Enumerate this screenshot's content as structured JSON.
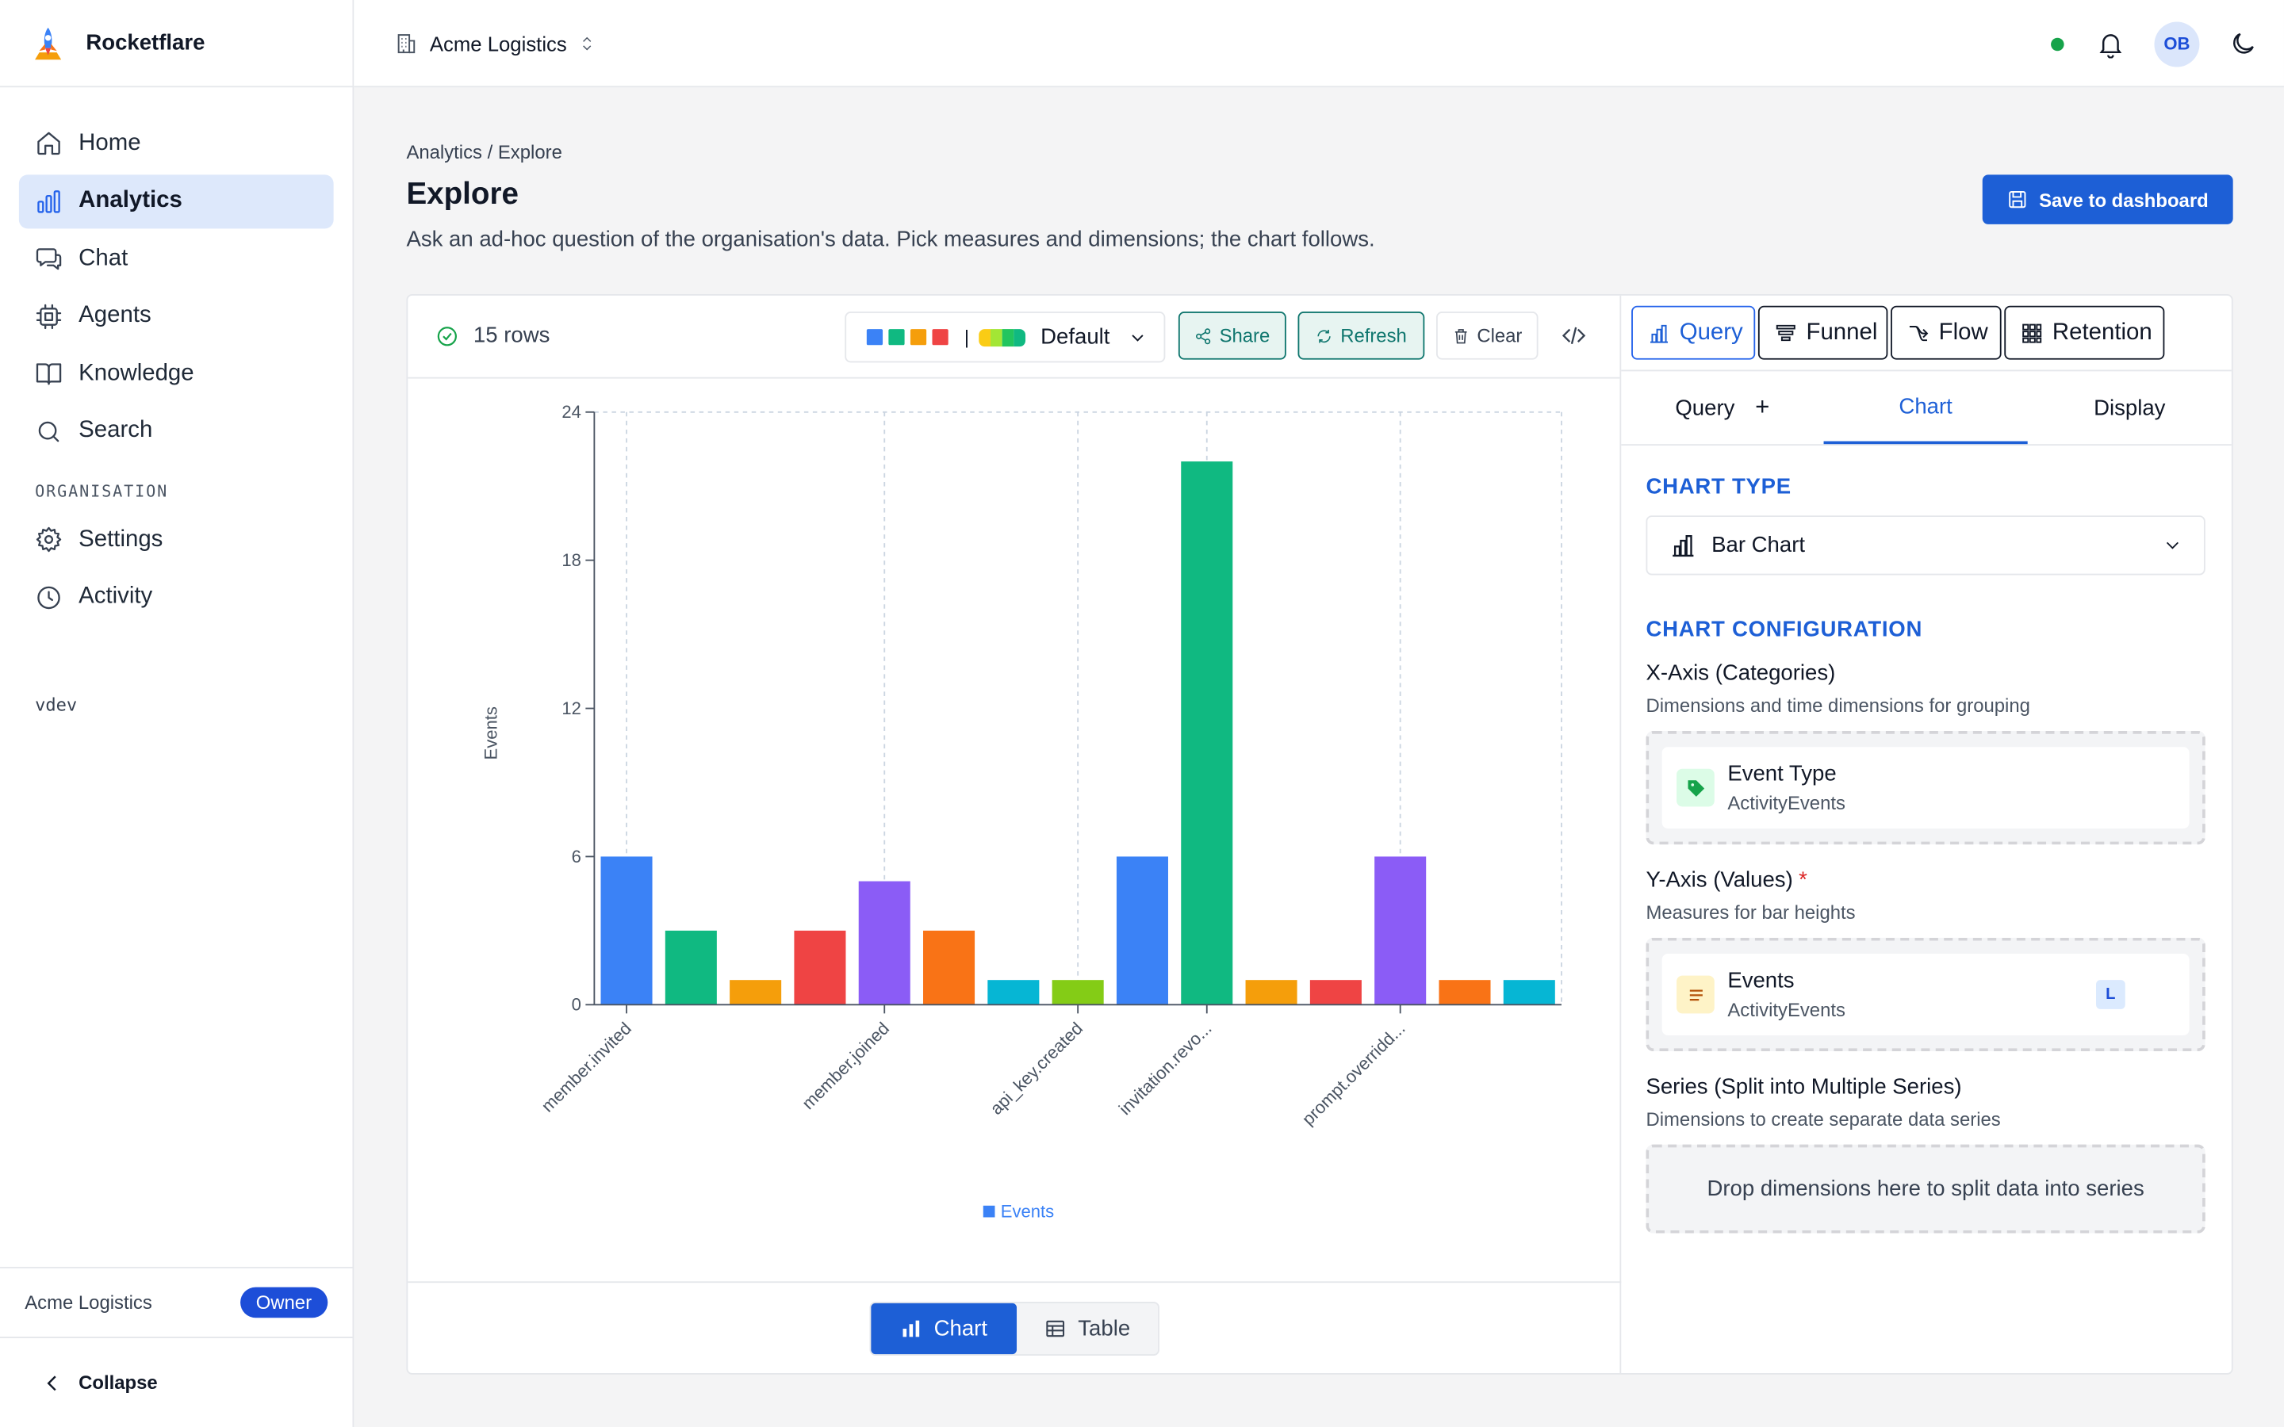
{
  "app": {
    "name": "Rocketflare",
    "colors": {
      "accent": "#1d5fd6",
      "teal": "#0f766e",
      "success": "#16a34a"
    }
  },
  "sidebar": {
    "items": [
      {
        "label": "Home",
        "icon": "home-icon"
      },
      {
        "label": "Analytics",
        "icon": "bar-chart-icon",
        "active": true
      },
      {
        "label": "Chat",
        "icon": "chat-icon"
      },
      {
        "label": "Agents",
        "icon": "chip-icon"
      },
      {
        "label": "Knowledge",
        "icon": "book-icon"
      },
      {
        "label": "Search",
        "icon": "search-icon"
      }
    ],
    "section_label": "ORGANISATION",
    "org_items": [
      {
        "label": "Settings",
        "icon": "gear-icon"
      },
      {
        "label": "Activity",
        "icon": "clock-icon"
      }
    ],
    "version": "vdev",
    "footer_org": "Acme Logistics",
    "footer_role": "Owner",
    "collapse_label": "Collapse"
  },
  "topbar": {
    "org_name": "Acme Logistics",
    "avatar_initials": "OB"
  },
  "page": {
    "breadcrumb": "Analytics / Explore",
    "title": "Explore",
    "description": "Ask an ad-hoc question of the organisation's data. Pick measures and dimensions; the chart follows.",
    "save_label": "Save to dashboard"
  },
  "toolbar": {
    "rows_label": "15 rows",
    "palette_label": "Default",
    "palette_swatches": [
      "#3b82f6",
      "#10b981",
      "#f59e0b",
      "#ef4444"
    ],
    "share_label": "Share",
    "refresh_label": "Refresh",
    "clear_label": "Clear"
  },
  "view_toggle": {
    "chart_label": "Chart",
    "table_label": "Table"
  },
  "query_tabs": {
    "items": [
      "Query",
      "Funnel",
      "Flow",
      "Retention"
    ],
    "active": "Query"
  },
  "sub_tabs": {
    "query_label": "Query",
    "chart_label": "Chart",
    "display_label": "Display"
  },
  "config": {
    "chart_type_title": "CHART TYPE",
    "chart_type_value": "Bar Chart",
    "chart_config_title": "CHART CONFIGURATION",
    "x_axis_title": "X-Axis (Categories)",
    "x_axis_sub": "Dimensions and time dimensions for grouping",
    "x_field_name": "Event Type",
    "x_field_source": "ActivityEvents",
    "y_axis_title": "Y-Axis (Values)",
    "y_axis_required": "*",
    "y_axis_sub": "Measures for bar heights",
    "y_field_name": "Events",
    "y_field_source": "ActivityEvents",
    "y_field_tag": "L",
    "series_title": "Series (Split into Multiple Series)",
    "series_sub": "Dimensions to create separate data series",
    "series_placeholder": "Drop dimensions here to split data into series"
  },
  "chart_data": {
    "type": "bar",
    "ylabel": "Events",
    "xlabel": "",
    "ylim": [
      0,
      24
    ],
    "yticks": [
      0,
      6,
      12,
      18,
      24
    ],
    "categories": [
      "member.invited",
      "",
      "",
      "",
      "member.joined",
      "",
      "",
      "api_key.created",
      "",
      "invitation.revo...",
      "",
      "",
      "prompt.overridd...",
      "",
      ""
    ],
    "x_tick_labels": [
      "member.invited",
      "member.joined",
      "api_key.created",
      "invitation.revo...",
      "prompt.overridd..."
    ],
    "series": [
      {
        "name": "Events",
        "values": [
          6,
          3,
          1,
          3,
          5,
          3,
          1,
          1,
          6,
          22,
          1,
          1,
          6,
          1,
          1
        ],
        "colors": [
          "#3b82f6",
          "#10b981",
          "#f59e0b",
          "#ef4444",
          "#8b5cf6",
          "#f97316",
          "#06b6d4",
          "#84cc16",
          "#3b82f6",
          "#10b981",
          "#f59e0b",
          "#ef4444",
          "#8b5cf6",
          "#f97316",
          "#06b6d4"
        ]
      }
    ],
    "legend": "bottom",
    "grid": true
  }
}
